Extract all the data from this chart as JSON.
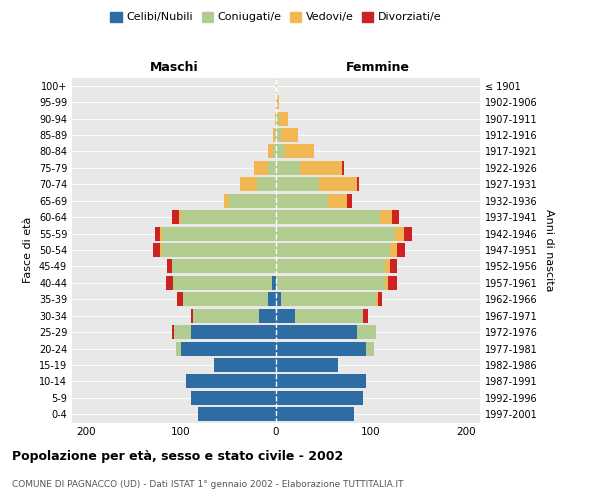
{
  "age_groups": [
    "0-4",
    "5-9",
    "10-14",
    "15-19",
    "20-24",
    "25-29",
    "30-34",
    "35-39",
    "40-44",
    "45-49",
    "50-54",
    "55-59",
    "60-64",
    "65-69",
    "70-74",
    "75-79",
    "80-84",
    "85-89",
    "90-94",
    "95-99",
    "100+"
  ],
  "birth_years": [
    "1997-2001",
    "1992-1996",
    "1987-1991",
    "1982-1986",
    "1977-1981",
    "1972-1976",
    "1967-1971",
    "1962-1966",
    "1957-1961",
    "1952-1956",
    "1947-1951",
    "1942-1946",
    "1937-1941",
    "1932-1936",
    "1927-1931",
    "1922-1926",
    "1917-1921",
    "1912-1916",
    "1907-1911",
    "1902-1906",
    "≤ 1901"
  ],
  "male": {
    "celibi": [
      82,
      90,
      95,
      65,
      100,
      90,
      18,
      8,
      4,
      0,
      0,
      0,
      0,
      0,
      0,
      0,
      0,
      0,
      0,
      0,
      0
    ],
    "coniugati": [
      0,
      0,
      0,
      0,
      5,
      18,
      70,
      90,
      105,
      110,
      120,
      120,
      100,
      50,
      20,
      8,
      3,
      1,
      0,
      0,
      0
    ],
    "vedovi": [
      0,
      0,
      0,
      0,
      0,
      0,
      0,
      0,
      0,
      0,
      2,
      2,
      2,
      5,
      18,
      15,
      5,
      2,
      1,
      0,
      0
    ],
    "divorziati": [
      0,
      0,
      0,
      0,
      0,
      2,
      2,
      6,
      7,
      5,
      8,
      5,
      8,
      0,
      0,
      0,
      0,
      0,
      0,
      0,
      0
    ]
  },
  "female": {
    "nubili": [
      82,
      92,
      95,
      65,
      95,
      85,
      20,
      5,
      0,
      0,
      0,
      0,
      0,
      0,
      0,
      0,
      0,
      0,
      0,
      0,
      0
    ],
    "coniugate": [
      0,
      0,
      0,
      0,
      8,
      20,
      72,
      100,
      115,
      115,
      120,
      125,
      110,
      55,
      45,
      25,
      10,
      5,
      3,
      1,
      0
    ],
    "vedove": [
      0,
      0,
      0,
      0,
      0,
      0,
      0,
      2,
      3,
      5,
      8,
      10,
      12,
      20,
      40,
      45,
      30,
      18,
      10,
      2,
      1
    ],
    "divorziate": [
      0,
      0,
      0,
      0,
      0,
      0,
      5,
      5,
      10,
      8,
      8,
      8,
      8,
      5,
      2,
      2,
      0,
      0,
      0,
      0,
      0
    ]
  },
  "colors": {
    "celibi": "#2e6da4",
    "coniugati": "#b2cc8f",
    "vedovi": "#f0b752",
    "divorziati": "#cc2222"
  },
  "legend_labels": [
    "Celibi/Nubili",
    "Coniugati/e",
    "Vedovi/e",
    "Divorziati/e"
  ],
  "title": "Popolazione per età, sesso e stato civile - 2002",
  "subtitle": "COMUNE DI PAGNACCO (UD) - Dati ISTAT 1° gennaio 2002 - Elaborazione TUTTITALIA.IT",
  "xlabel_left": "Maschi",
  "xlabel_right": "Femmine",
  "ylabel": "Fasce di età",
  "ylabel_right": "Anni di nascita",
  "xlim": 215,
  "plot_bg": "#e8e8e8"
}
